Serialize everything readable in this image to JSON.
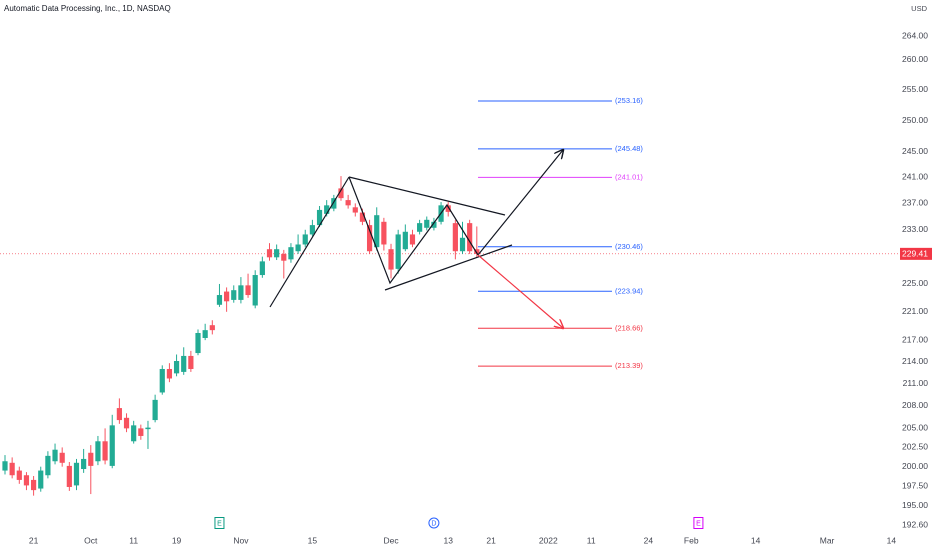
{
  "chart_data": {
    "type": "candlestick",
    "title": "Automatic Data Processing, Inc., 1D, NASDAQ",
    "currency": "USD",
    "log": true,
    "up_color": "#22ab94",
    "down_color": "#f7525f",
    "x": [
      0,
      1,
      2,
      3,
      4,
      5,
      6,
      7,
      8,
      9,
      10,
      11,
      12,
      13,
      14,
      15,
      16,
      17,
      18,
      19,
      20,
      21,
      22,
      23,
      24,
      25,
      26,
      27,
      28,
      29,
      30,
      31,
      32,
      33,
      34,
      35,
      36,
      37,
      38,
      39,
      40,
      41,
      42,
      43,
      44,
      45,
      46,
      47,
      48,
      49,
      50,
      51,
      52,
      53,
      54,
      55,
      56,
      57,
      58,
      59,
      60,
      61,
      62,
      63,
      64,
      65,
      66
    ],
    "open": [
      199.5,
      200.5,
      199.5,
      198.9,
      198.3,
      197.2,
      198.9,
      200.7,
      201.8,
      200.1,
      197.6,
      199.7,
      201.8,
      200.7,
      203.3,
      200.1,
      207.7,
      206.4,
      203.3,
      205,
      204.9,
      206.1,
      209.8,
      213,
      212.4,
      212.6,
      214.8,
      215.2,
      217.3,
      219.1,
      222,
      223.9,
      222.7,
      222.7,
      224.8,
      221.9,
      226.3,
      230.1,
      228.9,
      229.4,
      228.6,
      229.8,
      230.8,
      232.3,
      233.7,
      235.4,
      236.2,
      239.3,
      237.5,
      236.4,
      235.6,
      233.7,
      230.4,
      234.2,
      230.1,
      227.2,
      230.1,
      232.3,
      232.7,
      233.3,
      233.3,
      234.2,
      236.7,
      234,
      229.8,
      234,
      230.1
    ],
    "high": [
      201.5,
      201.2,
      200,
      199.3,
      198.8,
      200,
      202,
      203,
      202.5,
      200.6,
      201,
      202.3,
      202.8,
      204,
      205,
      206.8,
      209,
      207,
      206,
      205.5,
      206,
      209.5,
      213.5,
      213.8,
      215,
      216,
      215.5,
      218.5,
      219.3,
      219.8,
      225,
      224.5,
      224.8,
      226,
      226.5,
      227,
      229,
      231,
      230.8,
      230,
      231,
      232.3,
      233,
      234.5,
      236.6,
      237.5,
      238.3,
      241.2,
      238.3,
      237,
      236.2,
      234.5,
      236.4,
      234.8,
      230.9,
      233,
      233.8,
      233,
      234.5,
      235,
      234.8,
      237.2,
      237.2,
      234.5,
      234.2,
      234.5,
      233.5
    ],
    "low": [
      199,
      198.5,
      197.8,
      197,
      196.3,
      196.8,
      198.5,
      200.3,
      200,
      196.9,
      197,
      199.2,
      196.5,
      200.2,
      200.3,
      199.8,
      205.6,
      204.5,
      203,
      203.5,
      202.3,
      205.8,
      209.5,
      211.2,
      212,
      212.2,
      212.6,
      214.9,
      217,
      217.8,
      221.7,
      221,
      222.3,
      222.2,
      223,
      221.5,
      225.9,
      228.4,
      228.5,
      225.8,
      228.1,
      229.4,
      230.4,
      232,
      233.4,
      235,
      235.8,
      237.4,
      236.2,
      235,
      233.7,
      229.4,
      229.9,
      229.9,
      225.8,
      226.5,
      229.8,
      230.4,
      232.3,
      232.9,
      232.9,
      233.8,
      235,
      228.6,
      229.4,
      229.4,
      228.9
    ],
    "close": [
      200.7,
      198.9,
      198.3,
      197.6,
      197,
      199.5,
      201.4,
      202.2,
      200.5,
      197.4,
      200.5,
      201,
      200.1,
      203.3,
      200.8,
      205.4,
      206.1,
      205,
      205.4,
      204,
      205.1,
      208.8,
      213,
      211.7,
      214.1,
      214.8,
      213,
      218,
      218.4,
      218.4,
      223.4,
      222.5,
      224.1,
      224.8,
      223.4,
      226.3,
      228.3,
      228.9,
      230.1,
      228.4,
      230.4,
      230.8,
      232.3,
      233.7,
      236,
      236.7,
      237.8,
      237.8,
      236.7,
      235.6,
      234.2,
      229.8,
      235.2,
      230.8,
      227.1,
      232.3,
      232.7,
      230.8,
      234,
      234.5,
      234.2,
      236.7,
      235.7,
      229.8,
      231.8,
      229.8,
      229.41
    ],
    "last_price": 229.41,
    "xlim": [
      -0.7,
      125.2
    ],
    "ylim": [
      192.0,
      270.2
    ],
    "xticks": [
      {
        "value": 4,
        "label": "21"
      },
      {
        "value": 12,
        "label": "Oct"
      },
      {
        "value": 18,
        "label": "11"
      },
      {
        "value": 24,
        "label": "19"
      },
      {
        "value": 33,
        "label": "Nov"
      },
      {
        "value": 43,
        "label": "15"
      },
      {
        "value": 54,
        "label": "Dec"
      },
      {
        "value": 62,
        "label": "13"
      },
      {
        "value": 68,
        "label": "21"
      },
      {
        "value": 76,
        "label": "2022"
      },
      {
        "value": 82,
        "label": "11"
      },
      {
        "value": 90,
        "label": "24"
      },
      {
        "value": 96,
        "label": "Feb"
      },
      {
        "value": 105,
        "label": "14"
      },
      {
        "value": 115,
        "label": "Mar"
      },
      {
        "value": 124,
        "label": "14"
      }
    ],
    "yticks": [
      {
        "value": 192.6,
        "label": "192.60"
      },
      {
        "value": 195,
        "label": "195.00"
      },
      {
        "value": 197.5,
        "label": "197.50"
      },
      {
        "value": 200,
        "label": "200.00"
      },
      {
        "value": 202.5,
        "label": "202.50"
      },
      {
        "value": 205,
        "label": "205.00"
      },
      {
        "value": 208,
        "label": "208.00"
      },
      {
        "value": 211,
        "label": "211.00"
      },
      {
        "value": 214,
        "label": "214.00"
      },
      {
        "value": 217,
        "label": "217.00"
      },
      {
        "value": 221,
        "label": "221.00"
      },
      {
        "value": 225,
        "label": "225.00"
      },
      {
        "value": 233,
        "label": "233.00"
      },
      {
        "value": 237,
        "label": "237.00"
      },
      {
        "value": 241,
        "label": "241.00"
      },
      {
        "value": 245,
        "label": "245.00"
      },
      {
        "value": 250,
        "label": "250.00"
      },
      {
        "value": 255,
        "label": "255.00"
      },
      {
        "value": 260,
        "label": "260.00"
      },
      {
        "value": 264,
        "label": "264.00"
      }
    ],
    "levels": [
      {
        "value": 253.16,
        "label": "(253.16)",
        "color": "#2962ff"
      },
      {
        "value": 245.48,
        "label": "(245.48)",
        "color": "#2962ff"
      },
      {
        "value": 241.01,
        "label": "(241.01)",
        "color": "#e040fb"
      },
      {
        "value": 230.46,
        "label": "(230.46)",
        "color": "#2962ff"
      },
      {
        "value": 223.94,
        "label": "(223.94)",
        "color": "#2962ff"
      },
      {
        "value": 218.66,
        "label": "(218.66)",
        "color": "#f23645"
      },
      {
        "value": 213.39,
        "label": "(213.39)",
        "color": "#f23645"
      }
    ],
    "events": [
      {
        "x": 30,
        "label": "E",
        "color": "#089981"
      },
      {
        "x": 60,
        "label": "D",
        "color": "#2962ff"
      },
      {
        "x": 97,
        "label": "E",
        "color": "#d500f9"
      }
    ]
  }
}
